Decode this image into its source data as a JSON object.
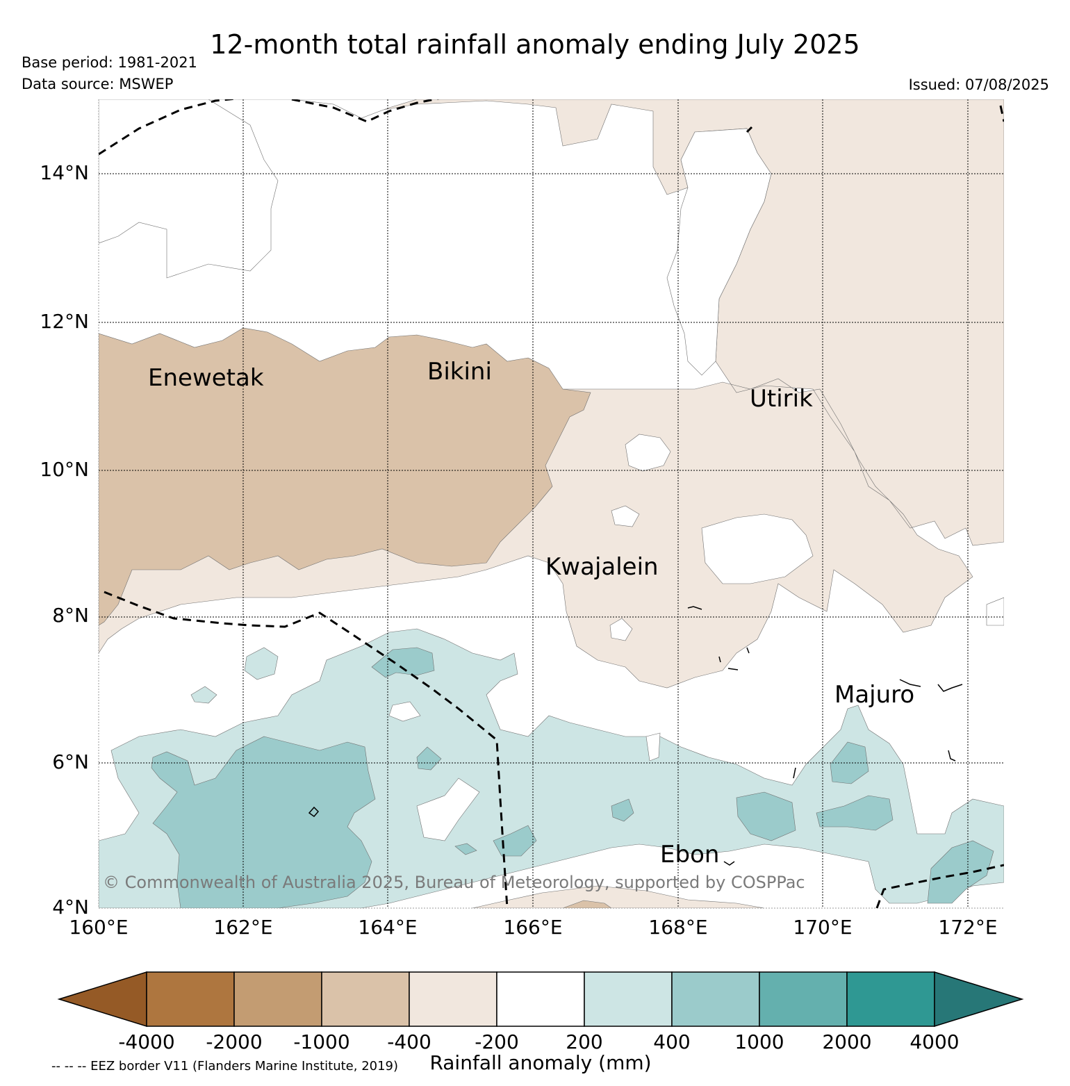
{
  "header": {
    "title": "12-month total rainfall anomaly ending July 2025",
    "base_period": "Base period: 1981-2021",
    "data_source": "Data source: MSWEP",
    "issued": "Issued: 07/08/2025"
  },
  "map": {
    "lat_labels": [
      "14°N",
      "12°N",
      "10°N",
      "8°N",
      "6°N",
      "4°N"
    ],
    "lon_labels": [
      "160°E",
      "162°E",
      "164°E",
      "166°E",
      "168°E",
      "170°E",
      "172°E"
    ],
    "places": {
      "enewetak": "Enewetak",
      "bikini": "Bikini",
      "utirik": "Utirik",
      "kwajalein": "Kwajalein",
      "majuro": "Majuro",
      "ebon": "Ebon"
    },
    "copyright": "© Commonwealth of Australia 2025, Bureau of Meteorology, supported by COSPPac"
  },
  "legend": {
    "title": "Rainfall anomaly (mm)",
    "tick_labels": [
      "-4000",
      "-2000",
      "-1000",
      "-400",
      "-200",
      "200",
      "400",
      "1000",
      "2000",
      "4000"
    ],
    "colors": [
      "#955a26",
      "#ae763f",
      "#c39c72",
      "#dac2a9",
      "#f1e7de",
      "#ffffff",
      "#cde5e4",
      "#9bcbcb",
      "#64b0ae",
      "#2f9893",
      "#277777"
    ],
    "eez_note": "-- -- -- EEZ border V11 (Flanders Marine Institute, 2019)"
  }
}
